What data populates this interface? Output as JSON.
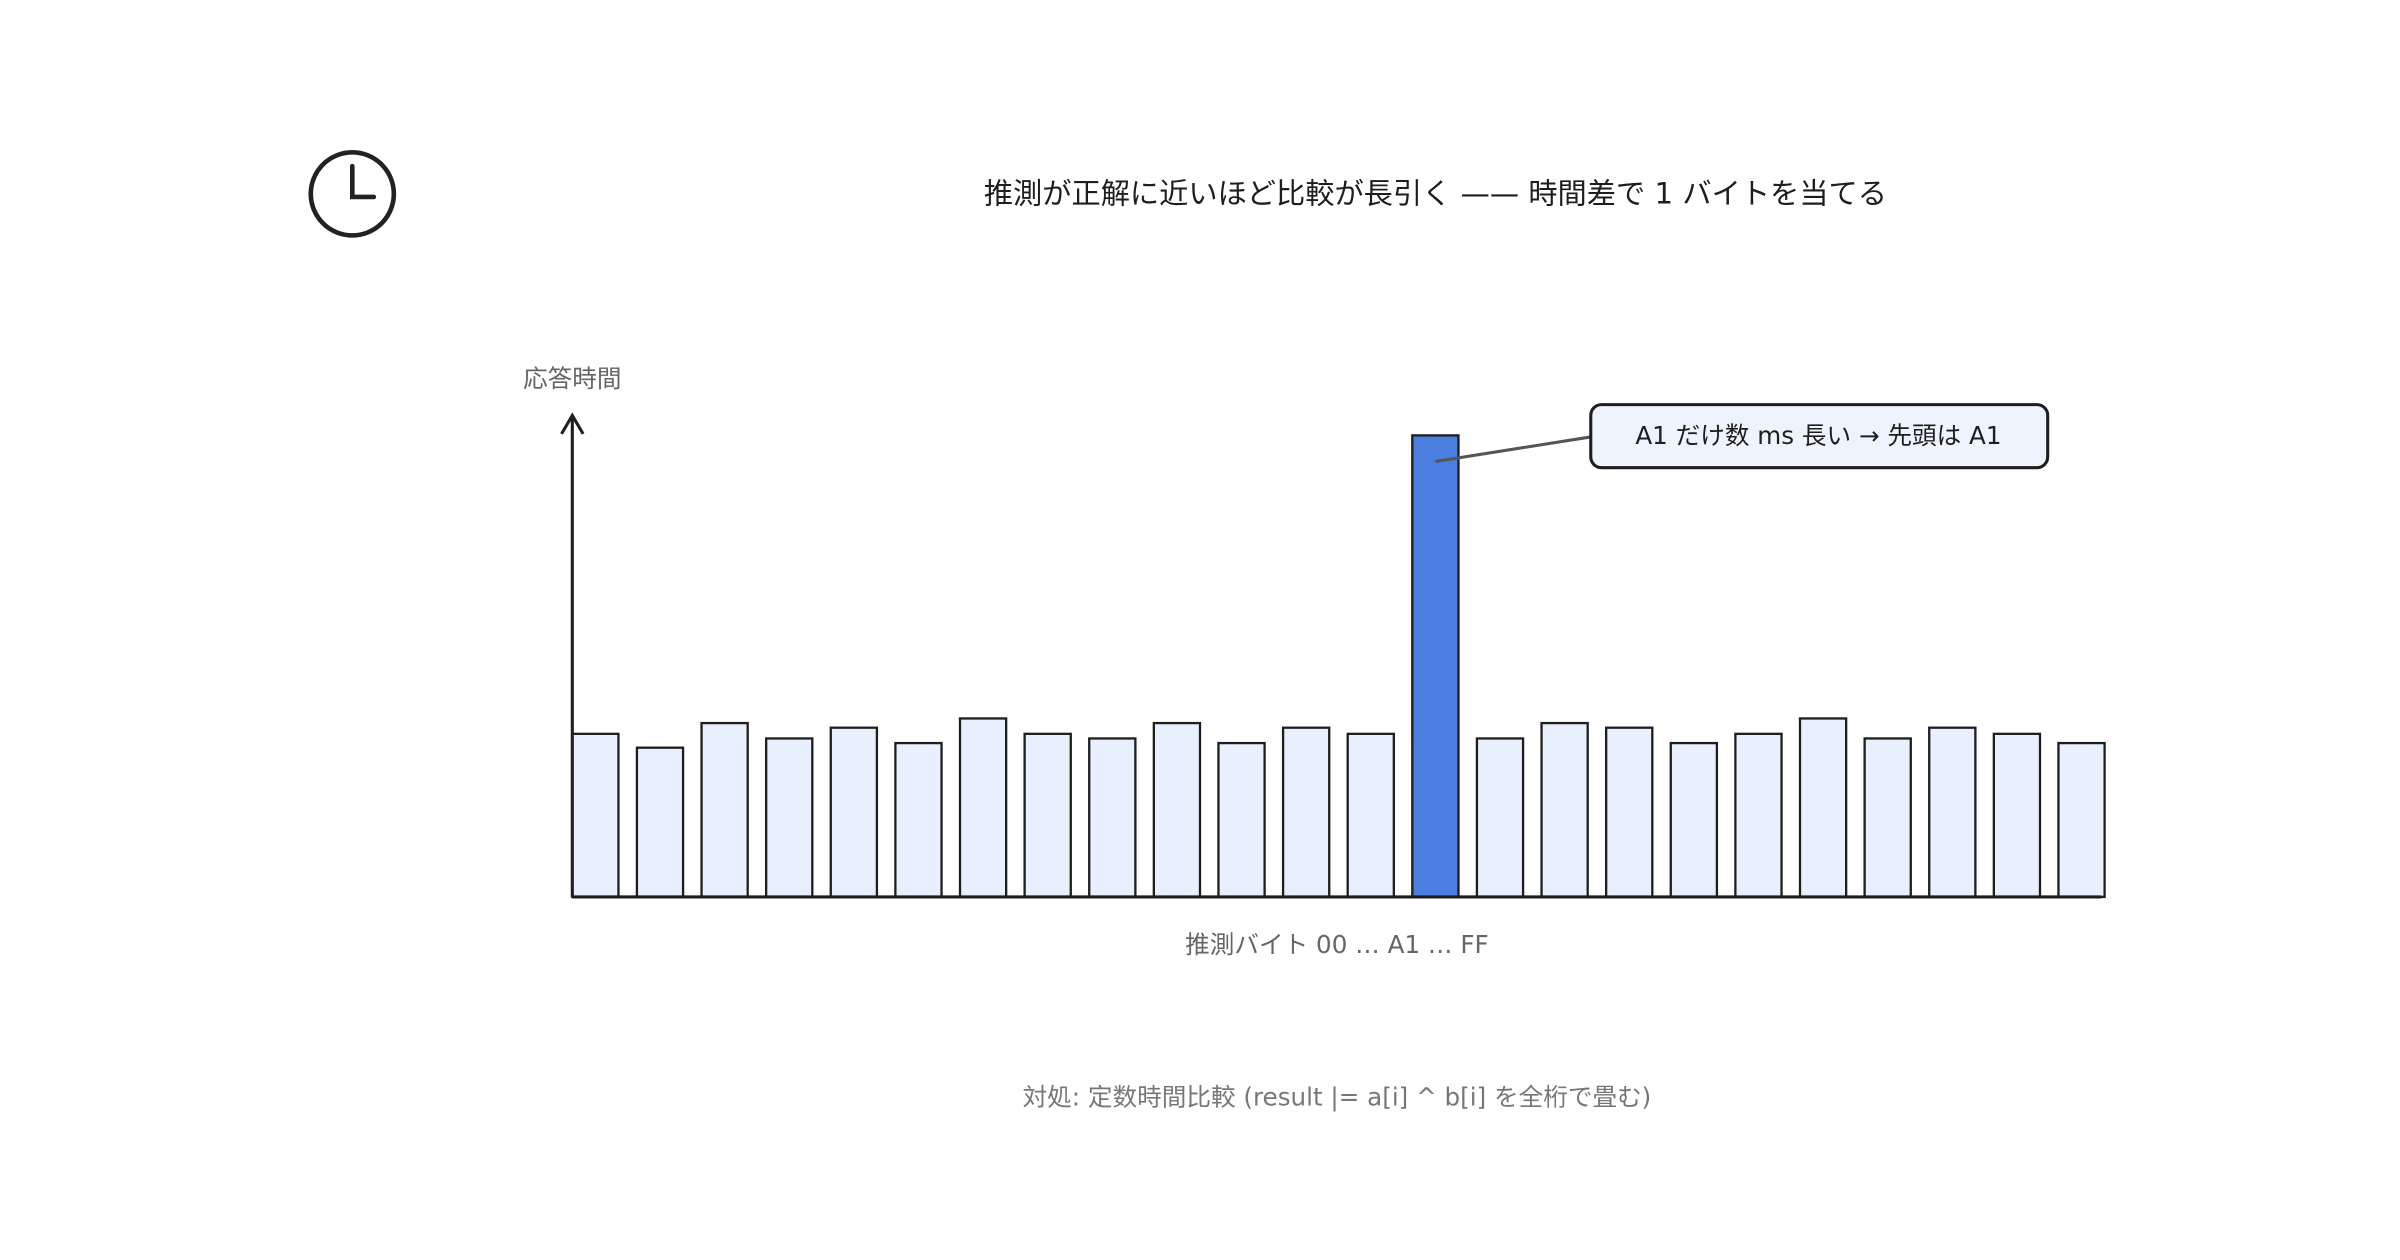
{
  "chart_data": {
    "type": "bar",
    "title": "推測が正解に近いほど比較が長引く —— 時間差で 1 バイトを当てる",
    "y_label": "応答時間",
    "x_label": "推測バイト 00 … A1 … FF",
    "annotation": "A1 だけ数 ms 長い → 先頭は A1",
    "footnote": "対処: 定数時間比較 (result |= a[i] ^ b[i] を全桁で畳む)",
    "values": [
      106,
      97,
      113,
      103,
      110,
      100,
      116,
      106,
      103,
      113,
      100,
      110,
      106,
      300,
      103,
      113,
      110,
      100,
      106,
      116,
      103,
      110,
      106,
      100
    ],
    "colors": [
      "#e7f0fc",
      "#e7f0fc",
      "#e7f0fc",
      "#e7f0fc",
      "#e7f0fc",
      "#e7f0fc",
      "#e7f0fc",
      "#e7f0fc",
      "#e7f0fc",
      "#e7f0fc",
      "#e7f0fc",
      "#e7f0fc",
      "#e7f0fc",
      "#4a7fe0",
      "#e7f0fc",
      "#e7f0fc",
      "#e7f0fc",
      "#e7f0fc",
      "#e7f0fc",
      "#e7f0fc",
      "#e7f0fc",
      "#e7f0fc",
      "#e7f0fc",
      "#e7f0fc"
    ],
    "ylim": [
      0,
      313
    ]
  }
}
